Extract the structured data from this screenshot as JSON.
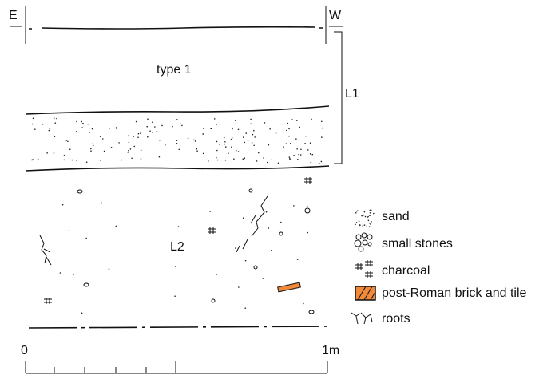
{
  "header": {
    "east": "E",
    "west": "W"
  },
  "layers": [
    {
      "label": "L1",
      "fill": "type 1"
    },
    {
      "label": "L2"
    }
  ],
  "legend": [
    "sand",
    "small stones",
    "charcoal",
    "post-Roman brick and tile",
    "roots"
  ],
  "scale": {
    "start": "0",
    "end": "1m"
  }
}
